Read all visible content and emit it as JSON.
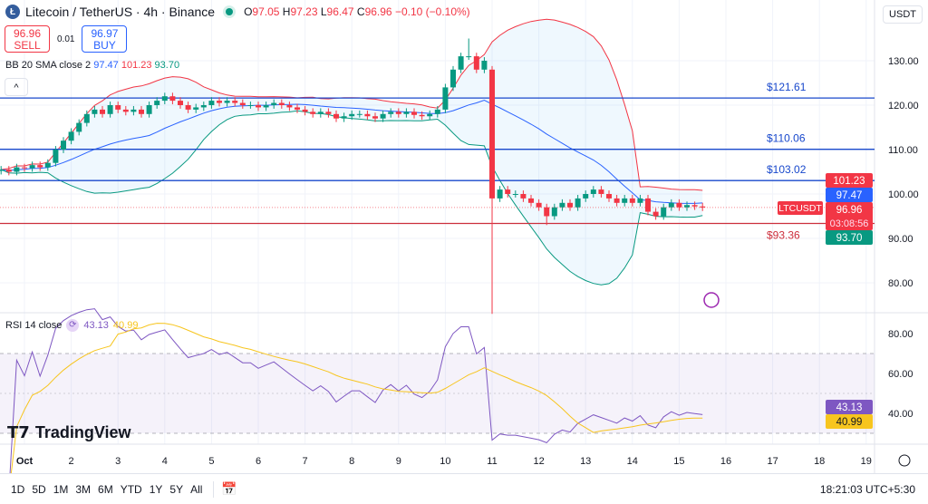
{
  "header": {
    "symbol": "Litecoin / TetherUS · 4h · Binance",
    "open_label": "O",
    "open": "97.05",
    "high_label": "H",
    "high": "97.23",
    "low_label": "L",
    "low": "96.47",
    "close_label": "C",
    "close": "96.96",
    "change": "−0.10 (−0.10%)"
  },
  "trade": {
    "sell_price": "96.96",
    "sell_label": "SELL",
    "spread": "0.01",
    "buy_price": "96.97",
    "buy_label": "BUY"
  },
  "bb": {
    "label": "BB 20 SMA close 2",
    "basis": "97.47",
    "upper": "101.23",
    "lower": "93.70"
  },
  "rsi": {
    "label": "RSI 14 close",
    "value": "43.13",
    "ma": "40.99"
  },
  "currency": "USDT",
  "symbol_tag": "LTCUSDT",
  "countdown": "03:08:56",
  "collapse_icon": "chevron-up",
  "colors": {
    "up": "#089981",
    "down": "#f23645",
    "basis": "#2962ff",
    "upper": "#f23645",
    "lower": "#089981",
    "rsi": "#7e57c2",
    "rsi_ma": "#f7c51e",
    "hline_blue": "#1848cc",
    "hline_red": "#cc2f3c"
  },
  "chart_data": {
    "type": "candlestick",
    "price_axis": {
      "ticks": [
        80,
        90,
        100,
        110,
        120,
        130
      ],
      "range": [
        71,
        142
      ]
    },
    "rsi_axis": {
      "ticks": [
        40,
        60,
        80
      ],
      "bands": [
        30,
        70
      ]
    },
    "x_ticks": [
      "Oct",
      "2",
      "3",
      "4",
      "5",
      "6",
      "7",
      "8",
      "9",
      "10",
      "11",
      "12",
      "13",
      "14",
      "15",
      "16",
      "17",
      "18",
      "19"
    ],
    "candle_start_day": 0.5,
    "candle_interval_days": 0.16667,
    "closes": [
      105.5,
      105,
      106,
      105.8,
      106.5,
      106,
      107,
      110,
      112,
      114,
      116,
      118,
      119,
      118,
      120,
      119,
      118.5,
      119,
      118,
      120,
      121,
      122,
      121,
      120,
      119,
      119.5,
      120,
      121,
      120.5,
      121,
      120.5,
      120,
      120,
      119.5,
      120,
      120.5,
      120,
      119.5,
      119,
      118.5,
      118,
      118.5,
      118,
      117,
      117.5,
      118,
      118,
      117.5,
      117,
      118,
      118.5,
      118,
      118.5,
      117.8,
      117.5,
      118,
      119,
      124,
      128,
      131,
      131,
      128,
      130,
      99,
      101,
      100,
      100,
      99,
      98,
      97,
      95,
      97,
      98,
      97,
      99,
      100,
      101,
      100,
      99,
      98,
      99,
      98,
      99,
      96,
      95,
      97,
      98,
      97,
      97.5,
      97.2,
      96.96
    ],
    "wick_extremes": {
      "60": {
        "high": 135
      },
      "63": {
        "low": 73,
        "open": 128
      },
      "70": {
        "low": 93
      }
    },
    "horizontal_lines": [
      {
        "value": 121.61,
        "label": "$121.61",
        "color": "blue"
      },
      {
        "value": 110.06,
        "label": "$110.06",
        "color": "blue"
      },
      {
        "value": 103.02,
        "label": "$103.02",
        "color": "blue"
      },
      {
        "value": 93.36,
        "label": "$93.36",
        "color": "red"
      }
    ],
    "last_labels": {
      "upper": "101.23",
      "basis": "97.47",
      "last": "96.96",
      "lower": "93.70",
      "rsi": "43.13",
      "rsi_ma": "40.99"
    }
  },
  "branding": "TradingView",
  "ranges": [
    "1D",
    "5D",
    "1M",
    "3M",
    "6M",
    "YTD",
    "1Y",
    "5Y",
    "All"
  ],
  "clock": "18:21:03 UTC+5:30"
}
